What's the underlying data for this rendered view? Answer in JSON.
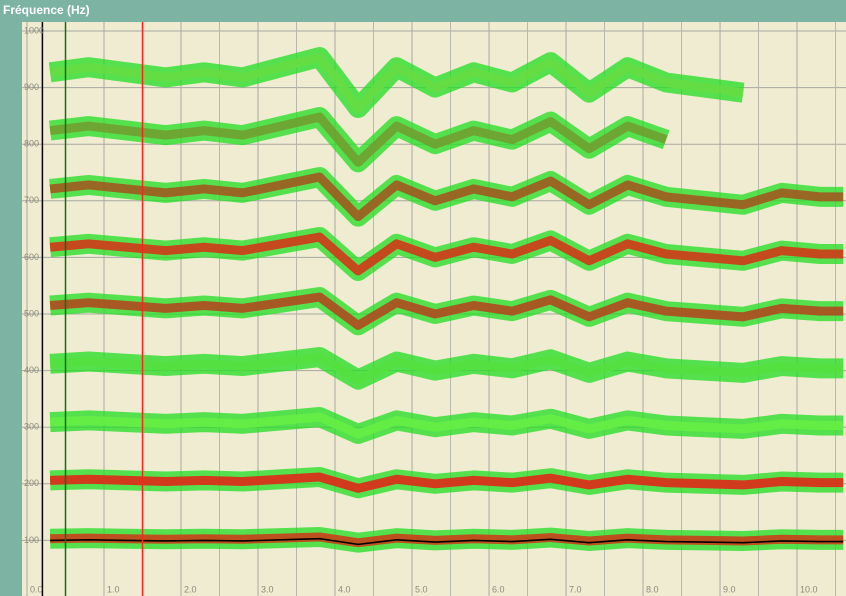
{
  "chart_data": {
    "type": "spectrogram",
    "title": "Fréquence (Hz)",
    "xlim": [
      -0.065,
      10.636
    ],
    "ylim": [
      0,
      1000
    ],
    "xticks": [
      {
        "value": 0,
        "label": "0.0"
      },
      {
        "value": 1,
        "label": "1.0"
      },
      {
        "value": 2,
        "label": "2.0"
      },
      {
        "value": 3,
        "label": "3.0"
      },
      {
        "value": 4,
        "label": "4.0"
      },
      {
        "value": 5,
        "label": "5.0"
      },
      {
        "value": 6,
        "label": "6.0"
      },
      {
        "value": 7,
        "label": "7.0"
      },
      {
        "value": 8,
        "label": "8.0"
      },
      {
        "value": 9,
        "label": "9.0"
      },
      {
        "value": 10,
        "label": "10.0"
      }
    ],
    "minor_xticks": [
      0.5,
      1.5,
      2.5,
      3.5,
      4.5,
      5.5,
      6.5,
      7.5,
      8.5,
      9.5,
      10.5
    ],
    "yticks": [
      100,
      200,
      300,
      400,
      500,
      600,
      700,
      800,
      900,
      1000
    ],
    "grid": true,
    "halo_color": "#22dd22",
    "markers": [
      {
        "x": 0.2,
        "color": "#000000"
      },
      {
        "x": 0.5,
        "color": "#107010"
      },
      {
        "x": 1.5,
        "color": "#ff2020"
      }
    ],
    "x": [
      0.3,
      0.8,
      1.3,
      1.8,
      2.3,
      2.8,
      3.3,
      3.8,
      4.3,
      4.8,
      5.3,
      5.8,
      6.3,
      6.8,
      7.3,
      7.8,
      8.3,
      8.8,
      9.3,
      9.8,
      10.3,
      10.6
    ],
    "series": [
      {
        "color": "#c8401a",
        "values": [
          103,
          104,
          103,
          102,
          103,
          102,
          104,
          106,
          96,
          104,
          100,
          103,
          101,
          105,
          99,
          104,
          101,
          100,
          99,
          102,
          101,
          101
        ]
      },
      {
        "color": "#e02818",
        "values": [
          206,
          208,
          206,
          204,
          206,
          204,
          208,
          212,
          192,
          208,
          200,
          206,
          202,
          210,
          198,
          208,
          202,
          200,
          198,
          204,
          202,
          202
        ]
      },
      {
        "color": "#66ee44",
        "values": [
          309,
          312,
          309,
          306,
          309,
          306,
          312,
          318,
          288,
          312,
          300,
          309,
          303,
          315,
          297,
          312,
          303,
          300,
          297,
          306,
          303,
          303
        ]
      },
      {
        "color": "#55e040",
        "values": [
          412,
          416,
          412,
          408,
          412,
          408,
          416,
          424,
          384,
          416,
          400,
          412,
          404,
          420,
          396,
          416,
          404,
          400,
          396,
          408,
          404,
          404
        ]
      },
      {
        "color": "#b04a20",
        "values": [
          515,
          520,
          515,
          510,
          515,
          510,
          520,
          530,
          480,
          520,
          500,
          515,
          505,
          525,
          495,
          520,
          505,
          500,
          495,
          510,
          505,
          505
        ]
      },
      {
        "color": "#d03a1a",
        "values": [
          618,
          624,
          618,
          612,
          618,
          612,
          624,
          636,
          576,
          624,
          600,
          618,
          606,
          630,
          594,
          624,
          606,
          600,
          594,
          612,
          606,
          606
        ]
      },
      {
        "color": "#a05a20",
        "values": [
          721,
          728,
          721,
          714,
          721,
          714,
          728,
          742,
          672,
          728,
          700,
          721,
          707,
          735,
          693,
          728,
          707,
          700,
          693,
          714,
          707,
          707
        ]
      },
      {
        "color": "#70a030",
        "values": [
          824,
          832,
          824,
          816,
          824,
          816,
          832,
          848,
          768,
          832,
          800,
          824,
          808,
          840,
          792,
          832,
          808,
          null,
          null,
          null,
          null,
          null
        ]
      },
      {
        "color": "#66dd44",
        "values": [
          927,
          936,
          927,
          918,
          927,
          918,
          936,
          954,
          864,
          936,
          900,
          927,
          909,
          945,
          891,
          936,
          909,
          900,
          891,
          null,
          null,
          null
        ]
      }
    ],
    "pitch": {
      "color": "#000000",
      "values": [
        100,
        101,
        100,
        99,
        100,
        99,
        101,
        103,
        93,
        101,
        97,
        100,
        98,
        102,
        96,
        101,
        98,
        97,
        96,
        99,
        98,
        98
      ]
    }
  }
}
